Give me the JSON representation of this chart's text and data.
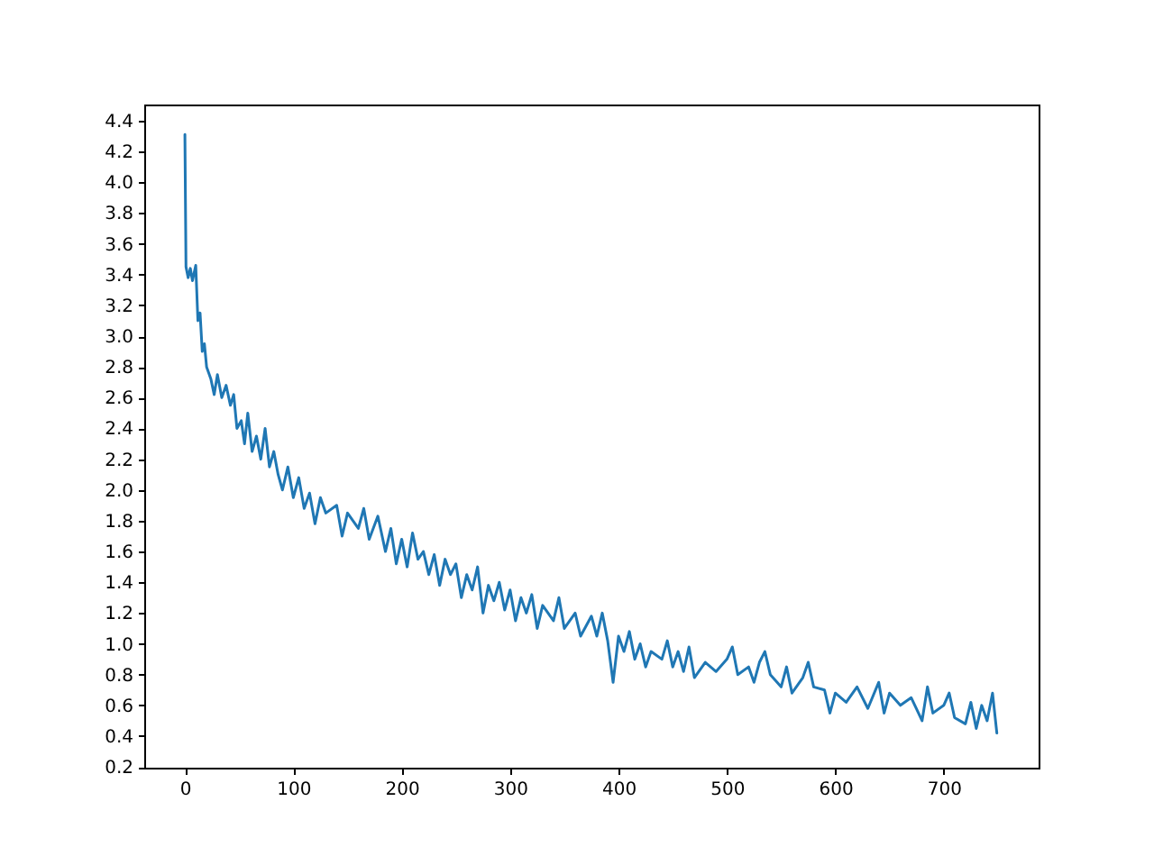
{
  "chart_data": {
    "type": "line",
    "xlim": [
      -37.5,
      787.5
    ],
    "ylim": [
      0.195,
      4.505
    ],
    "xticks": [
      0,
      100,
      200,
      300,
      400,
      500,
      600,
      700
    ],
    "yticks": [
      0.2,
      0.4,
      0.6,
      0.8,
      {
        "value": 1,
        "label": "1.0"
      },
      1.2,
      1.4,
      1.6,
      1.8,
      {
        "value": 2,
        "label": "2.0"
      },
      2.2,
      2.4,
      2.6,
      2.8,
      {
        "value": 3,
        "label": "3.0"
      },
      3.2,
      3.4,
      3.6,
      3.8,
      {
        "value": 4,
        "label": "4.0"
      },
      4.2,
      4.4
    ],
    "grid": false,
    "marker": "none",
    "line_style": "solid",
    "x": [
      0,
      1,
      3,
      5,
      7,
      10,
      12,
      14,
      16,
      18,
      20,
      24,
      27,
      30,
      34,
      38,
      42,
      45,
      48,
      52,
      55,
      58,
      62,
      66,
      70,
      74,
      78,
      82,
      86,
      90,
      95,
      100,
      105,
      110,
      115,
      120,
      125,
      130,
      140,
      145,
      150,
      160,
      165,
      170,
      178,
      185,
      190,
      195,
      200,
      205,
      210,
      215,
      220,
      225,
      230,
      235,
      240,
      245,
      250,
      255,
      260,
      265,
      270,
      275,
      280,
      285,
      290,
      295,
      300,
      305,
      310,
      315,
      320,
      325,
      330,
      340,
      345,
      350,
      360,
      365,
      375,
      380,
      385,
      390,
      395,
      400,
      405,
      410,
      415,
      420,
      425,
      430,
      440,
      445,
      450,
      455,
      460,
      465,
      470,
      480,
      490,
      500,
      505,
      510,
      520,
      525,
      530,
      535,
      540,
      550,
      555,
      560,
      570,
      575,
      580,
      590,
      595,
      600,
      610,
      620,
      630,
      640,
      645,
      650,
      660,
      670,
      680,
      685,
      690,
      700,
      705,
      710,
      720,
      725,
      730,
      735,
      740,
      745,
      749
    ],
    "series": [
      {
        "color": "#1f77b4",
        "values": [
          4.31,
          3.45,
          3.38,
          3.44,
          3.36,
          3.46,
          3.1,
          3.15,
          2.9,
          2.95,
          2.8,
          2.72,
          2.62,
          2.75,
          2.6,
          2.68,
          2.55,
          2.62,
          2.4,
          2.45,
          2.3,
          2.5,
          2.25,
          2.35,
          2.2,
          2.4,
          2.15,
          2.25,
          2.1,
          2.0,
          2.15,
          1.95,
          2.08,
          1.88,
          1.98,
          1.78,
          1.95,
          1.85,
          1.9,
          1.7,
          1.85,
          1.75,
          1.88,
          1.68,
          1.83,
          1.6,
          1.75,
          1.52,
          1.68,
          1.5,
          1.72,
          1.55,
          1.6,
          1.45,
          1.58,
          1.38,
          1.55,
          1.45,
          1.52,
          1.3,
          1.45,
          1.35,
          1.5,
          1.2,
          1.38,
          1.28,
          1.4,
          1.22,
          1.35,
          1.15,
          1.3,
          1.2,
          1.32,
          1.1,
          1.25,
          1.15,
          1.3,
          1.1,
          1.2,
          1.05,
          1.18,
          1.05,
          1.2,
          1.02,
          0.75,
          1.05,
          0.95,
          1.08,
          0.9,
          1.0,
          0.85,
          0.95,
          0.9,
          1.02,
          0.85,
          0.95,
          0.82,
          0.98,
          0.78,
          0.88,
          0.82,
          0.9,
          0.98,
          0.8,
          0.85,
          0.75,
          0.88,
          0.95,
          0.8,
          0.72,
          0.85,
          0.68,
          0.78,
          0.88,
          0.72,
          0.7,
          0.55,
          0.68,
          0.62,
          0.72,
          0.58,
          0.75,
          0.55,
          0.68,
          0.6,
          0.65,
          0.5,
          0.72,
          0.55,
          0.6,
          0.68,
          0.52,
          0.48,
          0.62,
          0.45,
          0.6,
          0.5,
          0.68,
          0.42
        ]
      }
    ]
  }
}
